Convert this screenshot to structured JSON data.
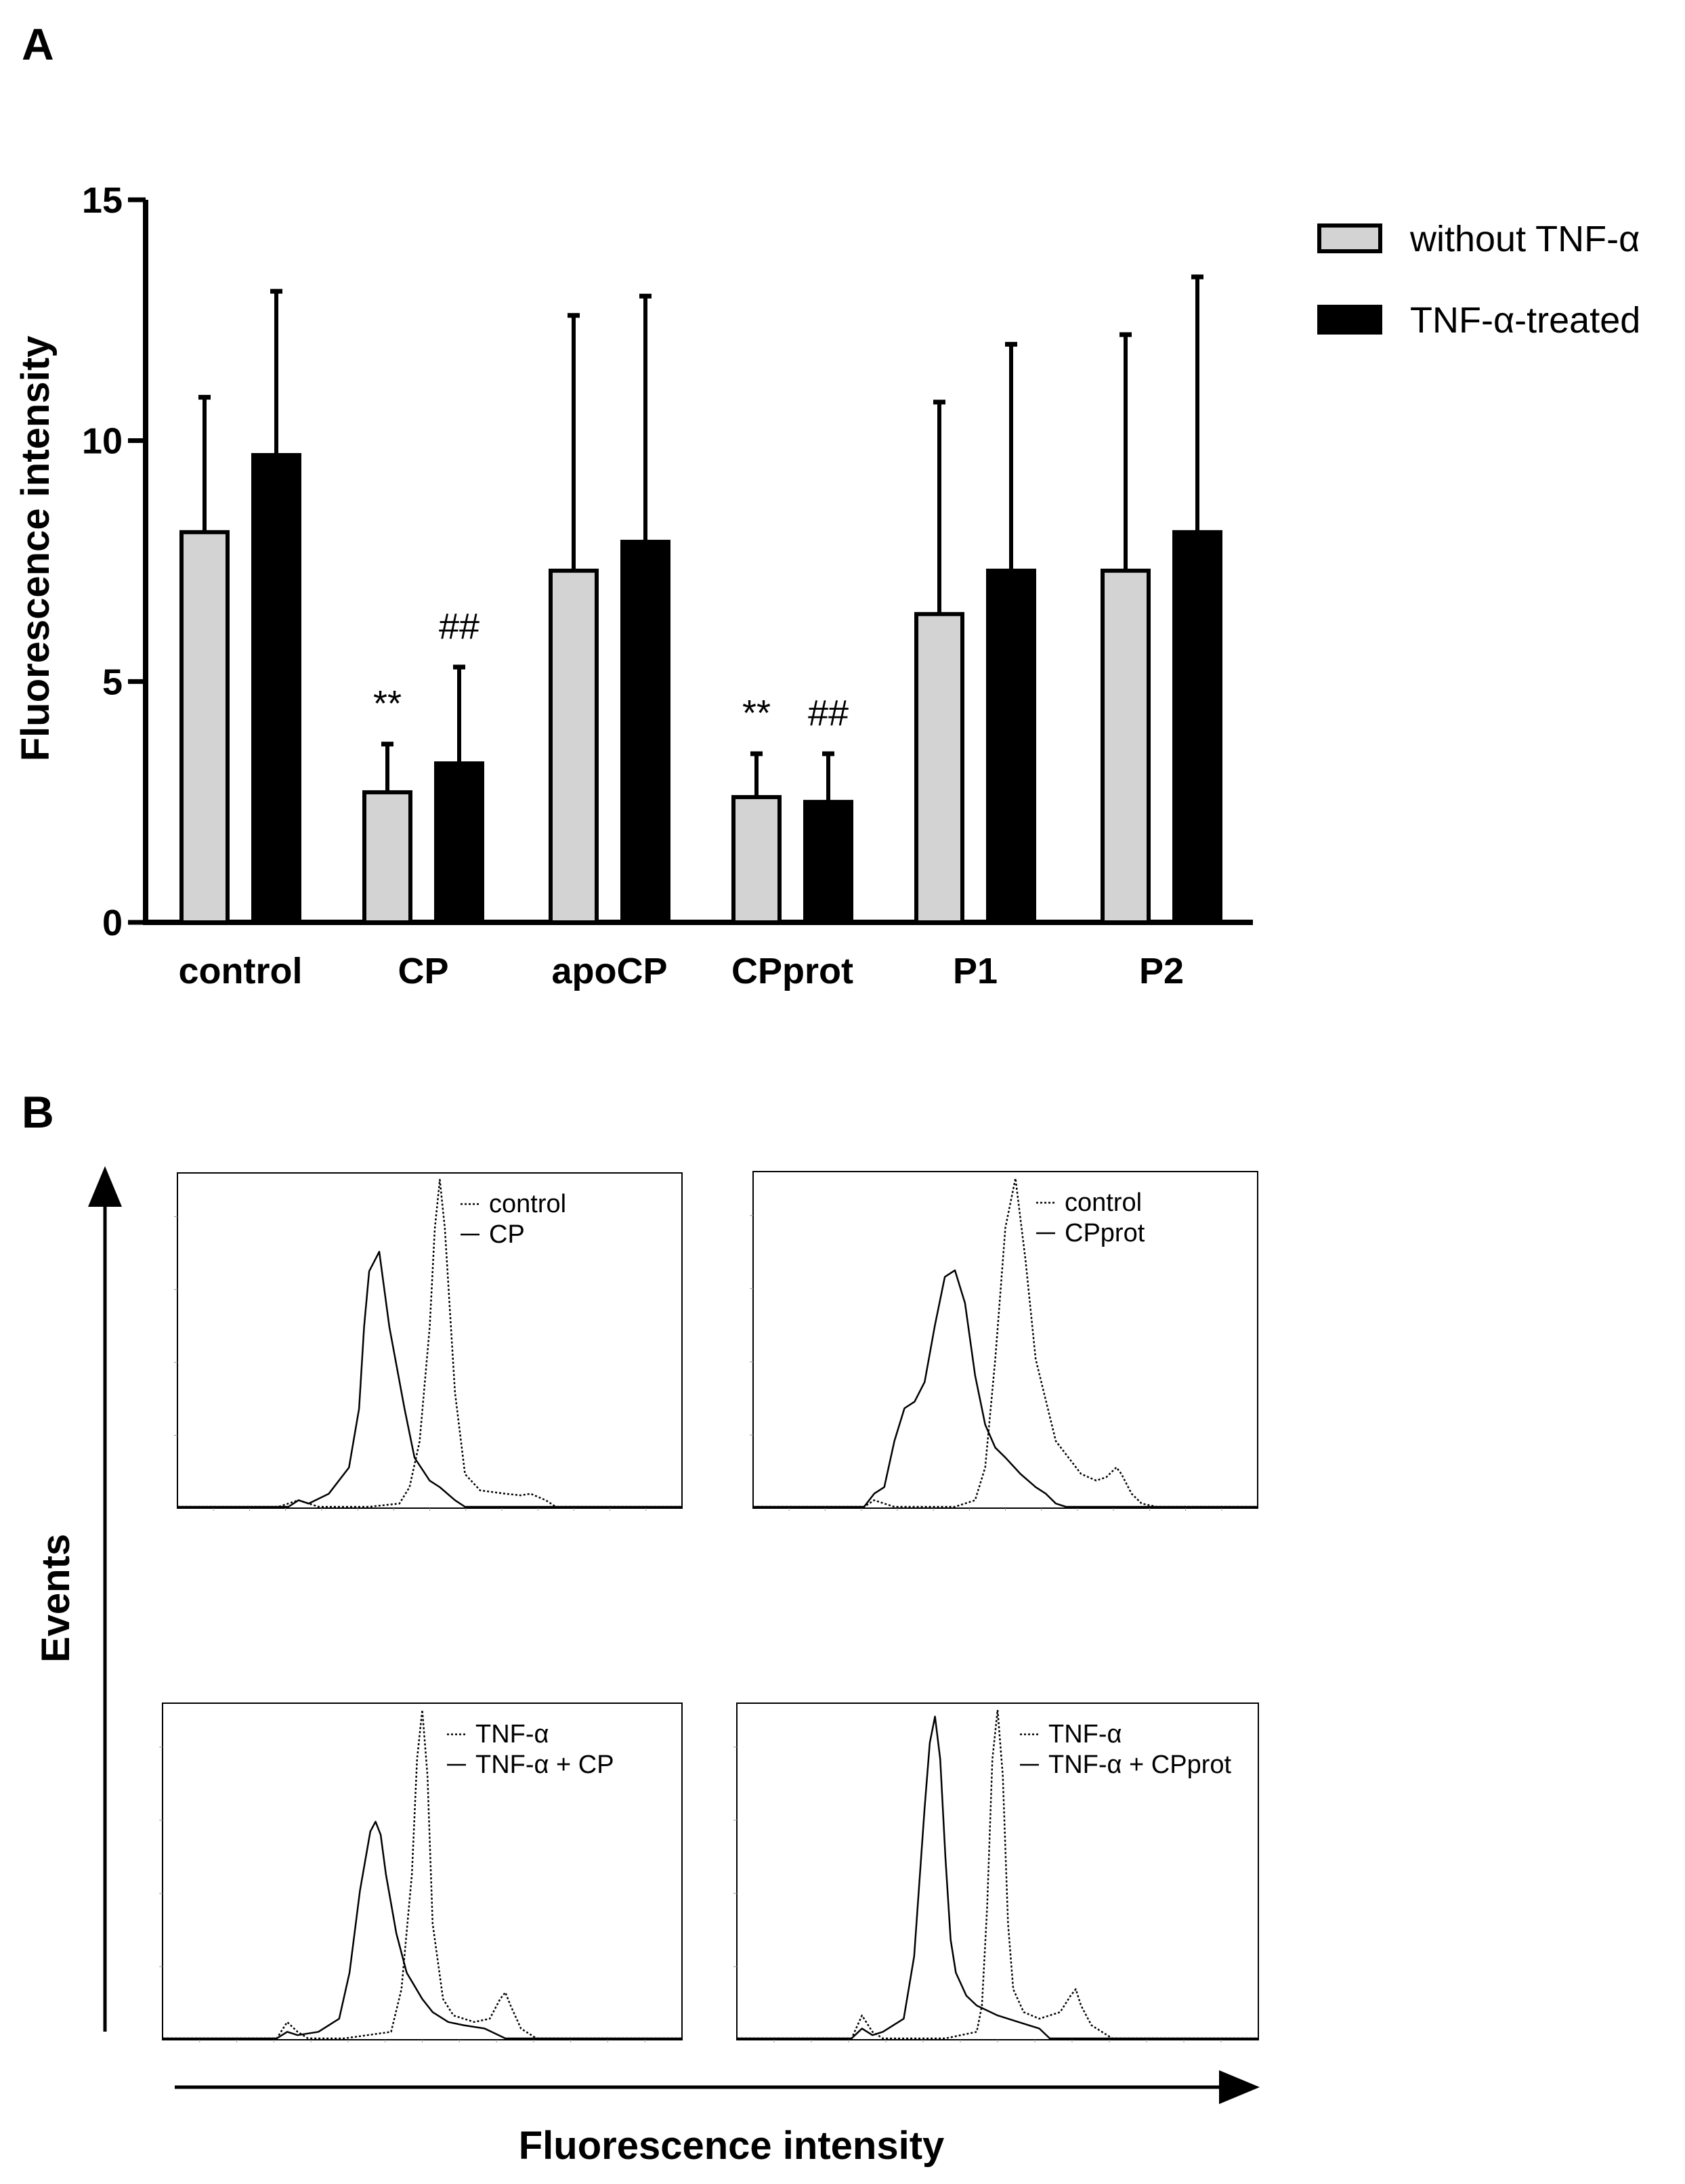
{
  "panel_a_label": "A",
  "panel_b_label": "B",
  "chart_data": [
    {
      "type": "bar",
      "title": "",
      "xlabel": "",
      "ylabel": "Fluorescence intensity",
      "ylim": [
        0,
        15
      ],
      "yticks": [
        "0",
        "5",
        "10",
        "15"
      ],
      "categories": [
        "control",
        "CP",
        "apoCP",
        "CPprot",
        "P1",
        "P2"
      ],
      "series": [
        {
          "name": "without TNF-α",
          "color": "#d3d3d3",
          "values": [
            8.1,
            2.7,
            7.3,
            2.6,
            6.4,
            7.3
          ],
          "errors": [
            2.8,
            1.0,
            5.3,
            0.9,
            4.4,
            4.9
          ],
          "annotations": [
            "",
            "**",
            "",
            "**",
            "",
            ""
          ]
        },
        {
          "name": "TNF-α-treated",
          "color": "#000000",
          "values": [
            9.7,
            3.3,
            7.9,
            2.5,
            7.3,
            8.1
          ],
          "errors": [
            3.4,
            2.0,
            5.1,
            1.0,
            4.7,
            5.3
          ],
          "annotations": [
            "",
            "##",
            "",
            "##",
            "",
            ""
          ]
        }
      ],
      "legend": "top-right"
    },
    {
      "type": "line",
      "title": "",
      "xlabel": "Fluorescence intensity",
      "ylabel": "Events",
      "panels": [
        {
          "legend": [
            {
              "name": "control",
              "style": "dotted"
            },
            {
              "name": "CP",
              "style": "solid"
            }
          ],
          "series": [
            {
              "name": "control",
              "style": "dotted",
              "x": [
                0,
                0.2,
                0.24,
                0.26,
                0.28,
                0.32,
                0.38,
                0.44,
                0.46,
                0.48,
                0.5,
                0.51,
                0.52,
                0.53,
                0.55,
                0.57,
                0.6,
                0.65,
                0.68,
                0.7,
                0.73,
                0.75,
                1
              ],
              "y": [
                0,
                0,
                0.02,
                0.01,
                0,
                0,
                0,
                0.01,
                0.06,
                0.2,
                0.55,
                0.85,
                1,
                0.85,
                0.35,
                0.1,
                0.05,
                0.04,
                0.035,
                0.04,
                0.02,
                0,
                0
              ]
            },
            {
              "name": "CP",
              "style": "solid",
              "x": [
                0,
                0.22,
                0.24,
                0.26,
                0.3,
                0.34,
                0.36,
                0.37,
                0.38,
                0.4,
                0.42,
                0.45,
                0.47,
                0.5,
                0.52,
                0.55,
                0.57,
                1
              ],
              "y": [
                0,
                0,
                0.02,
                0.01,
                0.04,
                0.12,
                0.3,
                0.55,
                0.72,
                0.78,
                0.55,
                0.3,
                0.15,
                0.08,
                0.06,
                0.02,
                0,
                0
              ]
            }
          ]
        },
        {
          "legend": [
            {
              "name": "control",
              "style": "dotted"
            },
            {
              "name": "CPprot",
              "style": "solid"
            }
          ],
          "series": [
            {
              "name": "control",
              "style": "dotted",
              "x": [
                0,
                0.22,
                0.24,
                0.26,
                0.28,
                0.32,
                0.4,
                0.44,
                0.46,
                0.48,
                0.5,
                0.52,
                0.54,
                0.56,
                0.6,
                0.65,
                0.68,
                0.7,
                0.72,
                0.73,
                0.75,
                0.77,
                0.8,
                1
              ],
              "y": [
                0,
                0,
                0.02,
                0.01,
                0,
                0,
                0,
                0.02,
                0.12,
                0.45,
                0.85,
                1,
                0.75,
                0.45,
                0.2,
                0.1,
                0.08,
                0.09,
                0.12,
                0.1,
                0.04,
                0.01,
                0,
                0
              ]
            },
            {
              "name": "CPprot",
              "style": "solid",
              "x": [
                0,
                0.22,
                0.24,
                0.26,
                0.28,
                0.3,
                0.32,
                0.34,
                0.36,
                0.38,
                0.4,
                0.42,
                0.44,
                0.46,
                0.48,
                0.5,
                0.53,
                0.56,
                0.58,
                0.6,
                0.62,
                1
              ],
              "y": [
                0,
                0,
                0.04,
                0.06,
                0.2,
                0.3,
                0.32,
                0.38,
                0.55,
                0.7,
                0.72,
                0.62,
                0.4,
                0.25,
                0.18,
                0.15,
                0.1,
                0.06,
                0.04,
                0.01,
                0,
                0
              ]
            }
          ]
        },
        {
          "legend": [
            {
              "name": "TNF-α",
              "style": "dotted"
            },
            {
              "name": "TNF-α + CP",
              "style": "solid"
            }
          ],
          "series": [
            {
              "name": "TNF-α",
              "style": "dotted",
              "x": [
                0,
                0.22,
                0.24,
                0.26,
                0.28,
                0.35,
                0.44,
                0.46,
                0.48,
                0.49,
                0.5,
                0.51,
                0.52,
                0.54,
                0.56,
                0.6,
                0.63,
                0.65,
                0.66,
                0.67,
                0.69,
                0.72,
                1
              ],
              "y": [
                0,
                0,
                0.05,
                0.02,
                0,
                0,
                0.02,
                0.15,
                0.5,
                0.85,
                1,
                0.8,
                0.35,
                0.12,
                0.07,
                0.05,
                0.06,
                0.12,
                0.14,
                0.1,
                0.03,
                0,
                0
              ]
            },
            {
              "name": "TNF-α + CP",
              "style": "solid",
              "x": [
                0,
                0.22,
                0.24,
                0.26,
                0.3,
                0.34,
                0.36,
                0.38,
                0.4,
                0.41,
                0.42,
                0.43,
                0.45,
                0.47,
                0.5,
                0.52,
                0.55,
                0.58,
                0.62,
                0.66,
                1
              ],
              "y": [
                0,
                0,
                0.02,
                0.01,
                0.02,
                0.06,
                0.2,
                0.45,
                0.63,
                0.66,
                0.62,
                0.5,
                0.32,
                0.2,
                0.12,
                0.08,
                0.05,
                0.04,
                0.03,
                0,
                0
              ]
            }
          ]
        },
        {
          "legend": [
            {
              "name": "TNF-α",
              "style": "dotted"
            },
            {
              "name": "TNF-α + CPprot",
              "style": "solid"
            }
          ],
          "series": [
            {
              "name": "TNF-α",
              "style": "dotted",
              "x": [
                0,
                0.22,
                0.24,
                0.26,
                0.28,
                0.4,
                0.46,
                0.47,
                0.48,
                0.49,
                0.5,
                0.51,
                0.52,
                0.53,
                0.55,
                0.58,
                0.62,
                0.64,
                0.65,
                0.66,
                0.68,
                0.72,
                1
              ],
              "y": [
                0,
                0,
                0.07,
                0.02,
                0,
                0,
                0.02,
                0.1,
                0.4,
                0.85,
                1,
                0.8,
                0.35,
                0.15,
                0.08,
                0.06,
                0.08,
                0.13,
                0.15,
                0.1,
                0.04,
                0,
                0
              ]
            },
            {
              "name": "TNF-α + CPprot",
              "style": "solid",
              "x": [
                0,
                0.22,
                0.24,
                0.26,
                0.28,
                0.32,
                0.34,
                0.36,
                0.37,
                0.38,
                0.39,
                0.4,
                0.41,
                0.42,
                0.44,
                0.46,
                0.5,
                0.54,
                0.58,
                0.6,
                1
              ],
              "y": [
                0,
                0,
                0.03,
                0.01,
                0.02,
                0.06,
                0.25,
                0.7,
                0.9,
                0.98,
                0.85,
                0.55,
                0.3,
                0.2,
                0.13,
                0.1,
                0.07,
                0.05,
                0.03,
                0,
                0
              ]
            }
          ]
        }
      ]
    }
  ]
}
